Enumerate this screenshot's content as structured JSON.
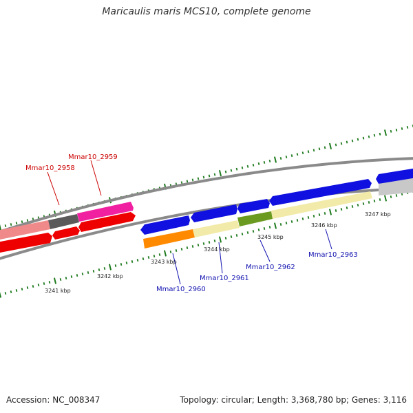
{
  "title": "Maricaulis maris MCS10, complete genome",
  "footer": {
    "accession": "Accession: NC_008347",
    "summary": "Topology: circular; Length: 3,368,780 bp; Genes: 3,116"
  },
  "colors": {
    "backbone": "#8a8a8a",
    "tick": "#1e7a1e",
    "label_red": "#cc0000",
    "label_blue": "#1010b0"
  },
  "kbp_labels": [
    "3241 kbp",
    "3242 kbp",
    "3243 kbp",
    "3244 kbp",
    "3245 kbp",
    "3246 kbp",
    "3247 kbp"
  ],
  "gene_labels": [
    {
      "text": "Mmar10_2958",
      "color": "red"
    },
    {
      "text": "Mmar10_2959",
      "color": "red"
    },
    {
      "text": "Mmar10_2960",
      "color": "blue"
    },
    {
      "text": "Mmar10_2961",
      "color": "blue"
    },
    {
      "text": "Mmar10_2962",
      "color": "blue"
    },
    {
      "text": "Mmar10_2963",
      "color": "blue"
    }
  ]
}
